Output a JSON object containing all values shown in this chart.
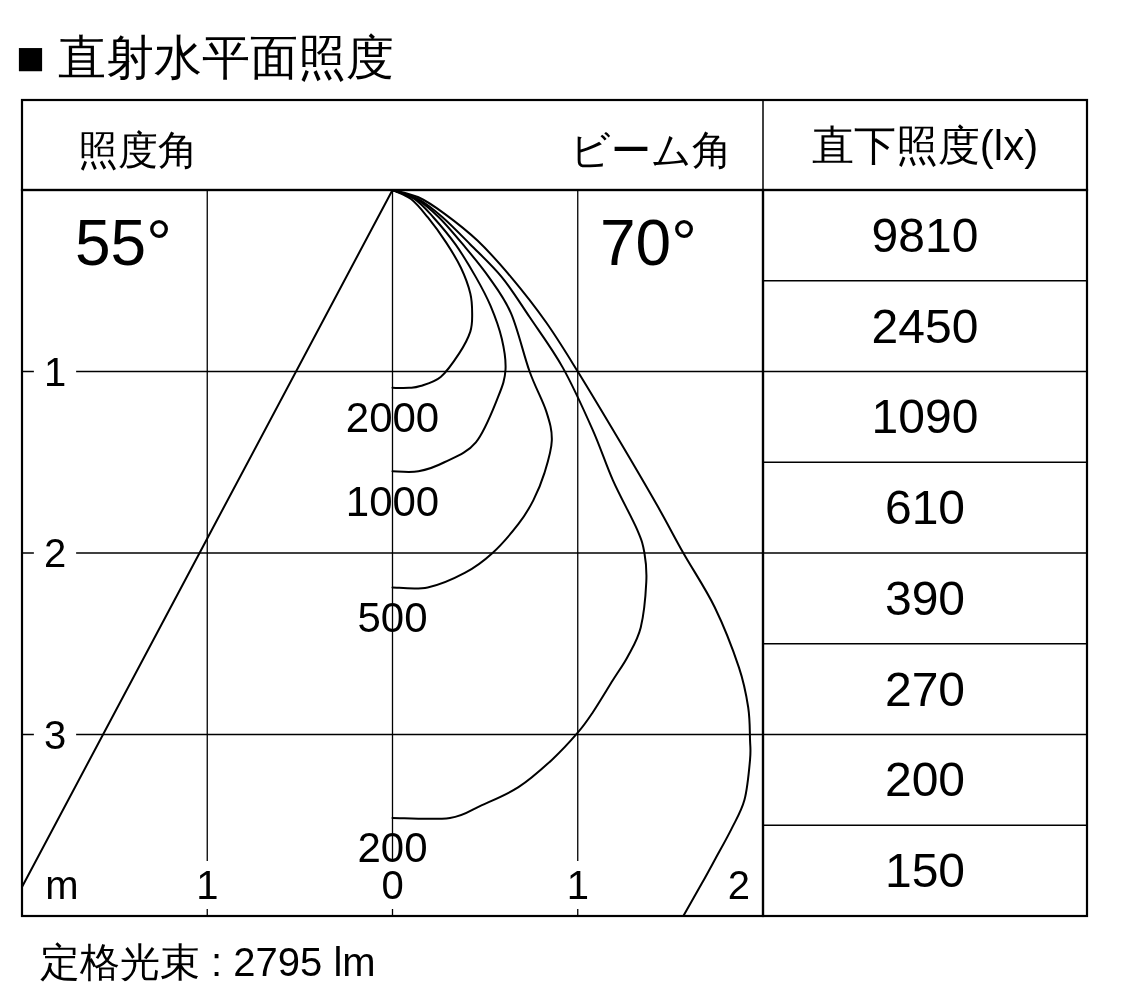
{
  "chart_data": [
    {
      "type": "line",
      "title": "■ 直射水平面照度",
      "xlabel": "m",
      "xlim": [
        -2,
        2
      ],
      "xticks": [
        {
          "value": -1,
          "label": "1"
        },
        0,
        1,
        2
      ],
      "ylim": [
        4,
        0
      ],
      "yticks": [
        1,
        2,
        3
      ],
      "grid": true,
      "series": [
        {
          "name": "2000",
          "color": "#000000",
          "x": [
            0,
            0.1,
            0.19,
            0.29,
            0.37,
            0.42,
            0.43,
            0.42,
            0.36,
            0.26,
            0.15,
            0.09,
            0
          ],
          "values": [
            0,
            0.05,
            0.15,
            0.29,
            0.43,
            0.57,
            0.68,
            0.78,
            0.9,
            1.03,
            1.08,
            1.09,
            1.09
          ]
        },
        {
          "name": "1000",
          "color": "#000000",
          "x": [
            0,
            0.12,
            0.22,
            0.34,
            0.45,
            0.53,
            0.59,
            0.61,
            0.57,
            0.45,
            0.28,
            0.14,
            0
          ],
          "values": [
            0,
            0.05,
            0.15,
            0.3,
            0.48,
            0.64,
            0.82,
            0.99,
            1.14,
            1.39,
            1.5,
            1.55,
            1.55
          ]
        },
        {
          "name": "500",
          "color": "#000000",
          "x": [
            0,
            0.13,
            0.25,
            0.38,
            0.52,
            0.64,
            0.74,
            0.83,
            0.86,
            0.82,
            0.76,
            0.68,
            0.54,
            0.39,
            0.19,
            0
          ],
          "values": [
            0,
            0.05,
            0.15,
            0.3,
            0.48,
            0.68,
            1.0,
            1.22,
            1.38,
            1.56,
            1.71,
            1.84,
            2.0,
            2.11,
            2.19,
            2.19
          ]
        },
        {
          "name": "200",
          "color": "#000000",
          "x": [
            0,
            0.14,
            0.27,
            0.42,
            0.59,
            0.74,
            0.92,
            1.08,
            1.19,
            1.32,
            1.36,
            1.37,
            1.34,
            1.27,
            1.19,
            1.08,
            1.0,
            0.86,
            0.68,
            0.48,
            0.31,
            0
          ],
          "values": [
            0,
            0.05,
            0.15,
            0.3,
            0.48,
            0.7,
            0.98,
            1.32,
            1.6,
            1.87,
            2.0,
            2.16,
            2.41,
            2.57,
            2.7,
            2.88,
            2.99,
            3.14,
            3.29,
            3.39,
            3.46,
            3.46
          ]
        },
        {
          "color": "#000000",
          "x": [
            0,
            0.14,
            0.28,
            0.46,
            0.64,
            0.83,
            1.0,
            1.23,
            1.43,
            1.57,
            1.74,
            1.87,
            1.92,
            1.93,
            1.93,
            1.9,
            1.83,
            1.74,
            1.67,
            1.57
          ],
          "values": [
            0,
            0.04,
            0.13,
            0.28,
            0.48,
            0.73,
            1.0,
            1.39,
            1.74,
            2.0,
            2.3,
            2.63,
            2.85,
            3.03,
            3.14,
            3.36,
            3.52,
            3.69,
            3.82,
            4.0
          ]
        },
        {
          "color": "#000000",
          "x": [
            0,
            -2
          ],
          "values": [
            0,
            3.84
          ]
        }
      ],
      "annotations": [
        "照度角",
        "55°",
        "ビーム角",
        "70°",
        "定格光束 : 2795 lm"
      ]
    },
    {
      "type": "other",
      "title": "直下照度(lx)",
      "categories": [
        null,
        null,
        null,
        null,
        null,
        null,
        null,
        null
      ],
      "values": [
        9810,
        2450,
        1090,
        610,
        390,
        270,
        200,
        150
      ],
      "data_labels": true
    }
  ]
}
